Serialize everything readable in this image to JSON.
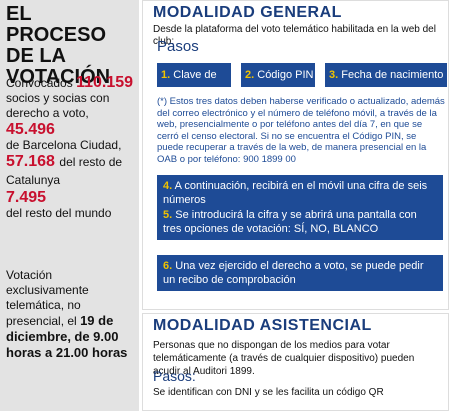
{
  "left": {
    "title": "EL PROCESO DE LA VOTACIÓN",
    "convocados_label": "Convocados",
    "convocados_value": "110.159",
    "convocados_desc": "socios y socias con derecho a voto,",
    "bcn_value": "45.496",
    "bcn_desc": "de Barcelona Ciudad,",
    "cat_value": "57.168",
    "cat_desc": "del resto de Catalunya",
    "world_value": "7.495",
    "world_desc": "del resto del mundo",
    "vote_text_1": "Votación exclusivamente telemática, no presencial,",
    "vote_text_el": "el",
    "vote_text_date": "19 de diciembre,",
    "vote_text_hours": "de 9.00 horas a 21.00 horas"
  },
  "general": {
    "title": "MODALIDAD GENERAL",
    "subtitle": "Desde la plataforma del voto telemático habilitada en la web del club:",
    "pasos": "Pasos",
    "steps": [
      {
        "num": "1.",
        "label": "Clave de socio"
      },
      {
        "num": "2.",
        "label": "Código PIN"
      },
      {
        "num": "3.",
        "label": "Fecha de nacimiento (*)"
      }
    ],
    "note": "(*) Estos tres datos deben haberse verificado o actualizado, además del correo electrónico y el número de teléfono móvil, a través de la web, presencialmente o por teléfono antes del día 7, en que se cerró el censo electoral. Si no se encuentra el Código PIN, se puede recuperar a través de la web, de manera presencial en la OAB o por teléfono: 900 1899 00",
    "step4_num": "4.",
    "step4": "A continuación, recibirá en el móvil una cifra de seis números",
    "step5_num": "5.",
    "step5": "Se introducirá la cifra y se abrirá una pantalla con tres opciones de votación: SÍ, NO, BLANCO",
    "step6_num": "6.",
    "step6": "Una vez ejercido el derecho a voto, se puede pedir un recibo de comprobación"
  },
  "asistencial": {
    "title": "MODALIDAD ASISTENCIAL",
    "desc": "Personas que no dispongan de los medios para votar telemáticamente (a través de cualquier dispositivo) pueden acudir al Auditori 1899.",
    "pasos": "Pasos:",
    "step": "Se identifican con DNI y se les facilita un código QR"
  },
  "colors": {
    "accent_blue": "#1e4b96",
    "highlight_red": "#c8102e",
    "number_yellow": "#f0c300"
  }
}
